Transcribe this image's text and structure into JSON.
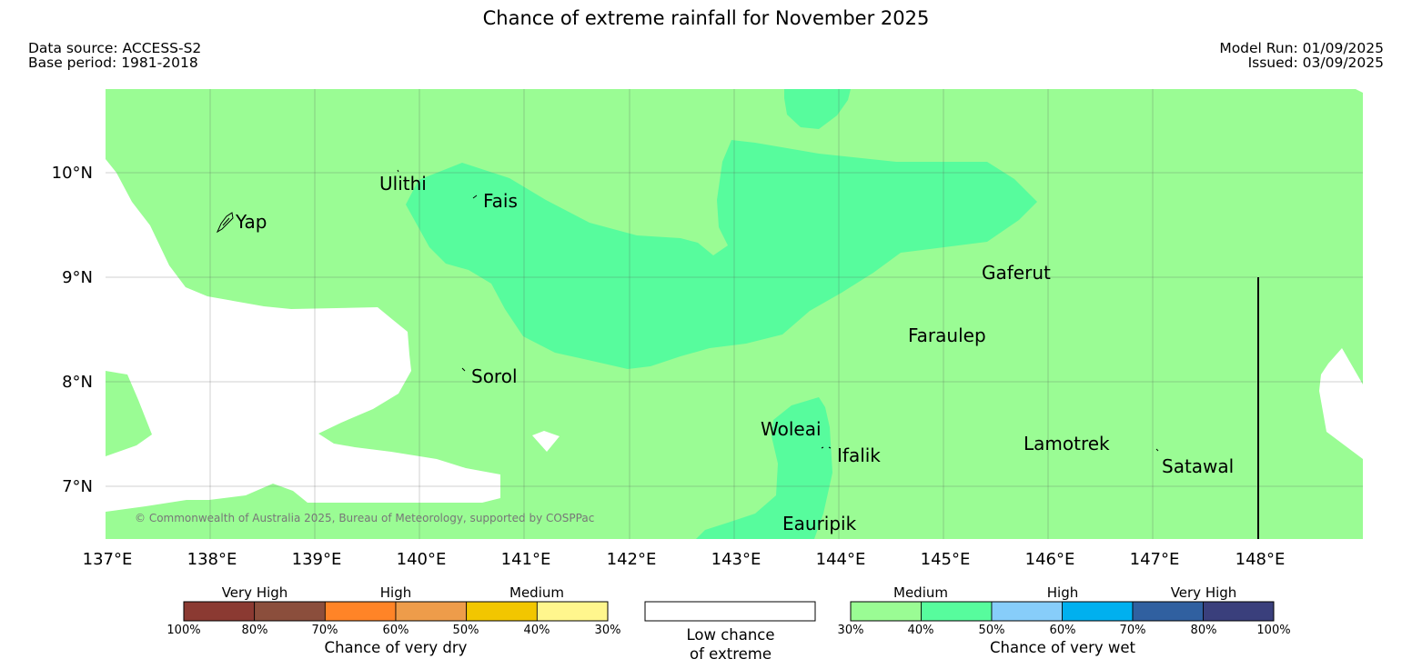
{
  "title": "Chance of extreme rainfall for November 2025",
  "info": {
    "data_source": "Data source: ACCESS-S2",
    "base_period": "Base period: 1981-2018",
    "model_run": "Model Run: 01/09/2025",
    "issued": "Issued: 03/09/2025"
  },
  "map": {
    "lon_ticks": [
      "137°E",
      "138°E",
      "139°E",
      "140°E",
      "141°E",
      "142°E",
      "143°E",
      "144°E",
      "145°E",
      "146°E",
      "147°E",
      "148°E"
    ],
    "lat_ticks": [
      "10°N",
      "9°N",
      "8°N",
      "7°N"
    ],
    "places": [
      "Ulithi",
      "Fais",
      "Yap",
      "Gaferut",
      "Faraulep",
      "Sorol",
      "Woleai",
      "Ifalik",
      "Lamotrek",
      "Satawal",
      "Eauripik"
    ],
    "copyright": "© Commonwealth of Australia 2025, Bureau of Meteorology, supported by COSPPac"
  },
  "legend": {
    "dry": {
      "groups": [
        "Very High",
        "High",
        "Medium"
      ],
      "ticks": [
        "100%",
        "80%",
        "70%",
        "60%",
        "50%",
        "40%",
        "30%"
      ],
      "colors": [
        "#8b3a32",
        "#8b4e3c",
        "#ff8427",
        "#ee9c4a",
        "#f2c600",
        "#fff68d"
      ],
      "caption": "Chance of very dry"
    },
    "low": {
      "line1": "Low chance",
      "line2": "of extreme"
    },
    "wet": {
      "groups": [
        "Medium",
        "High",
        "Very High"
      ],
      "ticks": [
        "30%",
        "40%",
        "50%",
        "60%",
        "70%",
        "80%",
        "100%"
      ],
      "colors": [
        "#9afc94",
        "#57fc9d",
        "#87cdfa",
        "#00b0ef",
        "#3060a0",
        "#3a3f7c"
      ],
      "caption": "Chance of very wet"
    }
  }
}
